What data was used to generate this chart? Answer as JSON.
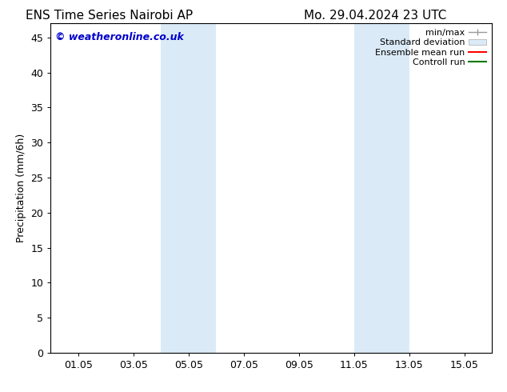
{
  "title_left": "ENS Time Series Nairobi AP",
  "title_right": "Mo. 29.04.2024 23 UTC",
  "ylabel": "Precipitation (mm/6h)",
  "watermark": "© weatheronline.co.uk",
  "watermark_color": "#0000cc",
  "xlim_start": 0.0,
  "xlim_end": 16.0,
  "ylim": [
    0,
    47
  ],
  "yticks": [
    0,
    5,
    10,
    15,
    20,
    25,
    30,
    35,
    40,
    45
  ],
  "xtick_labels": [
    "01.05",
    "03.05",
    "05.05",
    "07.05",
    "09.05",
    "11.05",
    "13.05",
    "15.05"
  ],
  "xtick_positions": [
    1,
    3,
    5,
    7,
    9,
    11,
    13,
    15
  ],
  "shaded_regions": [
    {
      "xmin": 4.0,
      "xmax": 6.0
    },
    {
      "xmin": 11.0,
      "xmax": 13.0
    }
  ],
  "shade_color": "#daeaf7",
  "shade_alpha": 1.0,
  "legend_labels": [
    "min/max",
    "Standard deviation",
    "Ensemble mean run",
    "Controll run"
  ],
  "legend_colors": [
    "#999999",
    "#cccccc",
    "#ff0000",
    "#007700"
  ],
  "bg_color": "#ffffff",
  "axes_color": "#000000",
  "title_fontsize": 11,
  "label_fontsize": 9,
  "tick_fontsize": 9,
  "watermark_fontsize": 9,
  "legend_fontsize": 8
}
